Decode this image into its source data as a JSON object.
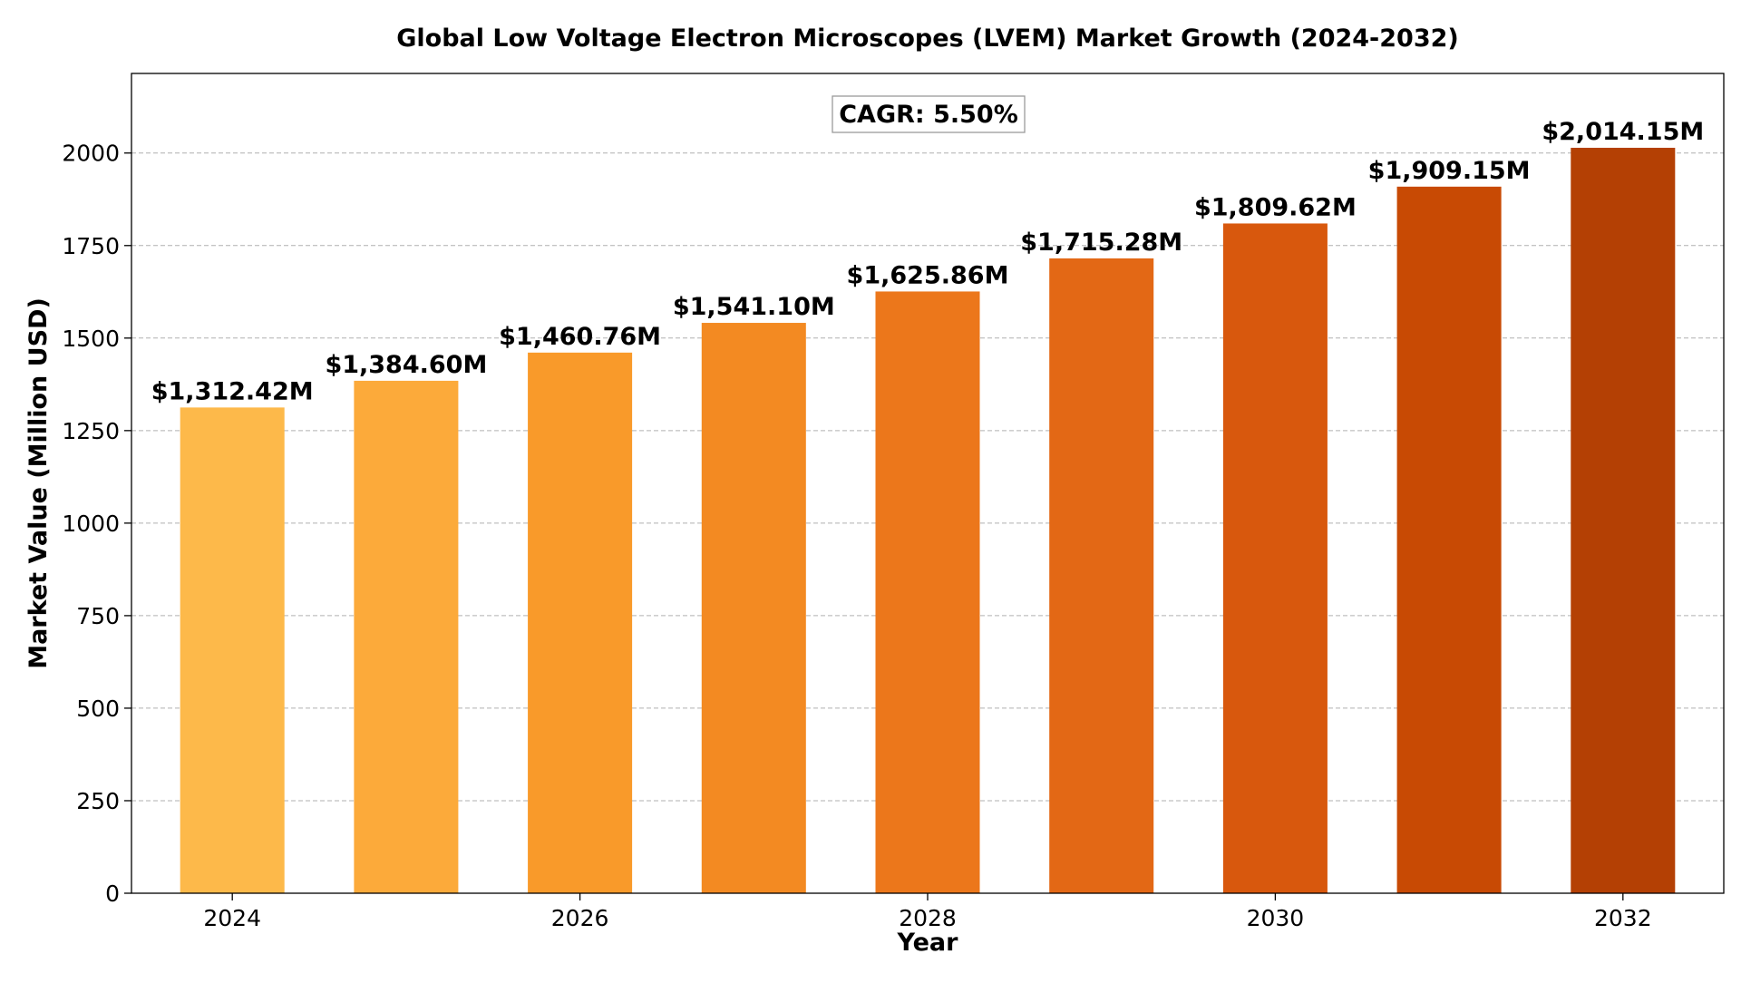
{
  "chart_data": {
    "type": "bar",
    "title": "Global Low Voltage Electron Microscopes (LVEM) Market Growth (2024-2032)",
    "xlabel": "Year",
    "ylabel": "Market Value (Million USD)",
    "x": [
      2024,
      2025,
      2026,
      2027,
      2028,
      2029,
      2030,
      2031,
      2032
    ],
    "values": [
      1312.42,
      1384.6,
      1460.76,
      1541.1,
      1625.86,
      1715.28,
      1809.62,
      1909.15,
      2014.15
    ],
    "value_labels": [
      "$1,312.42M",
      "$1,384.60M",
      "$1,460.76M",
      "$1,541.10M",
      "$1,625.86M",
      "$1,715.28M",
      "$1,809.62M",
      "$1,909.15M",
      "$2,014.15M"
    ],
    "bar_colors": [
      "#FDB94A",
      "#FCAA3A",
      "#F99A2A",
      "#F38A22",
      "#EC771B",
      "#E36815",
      "#D8580D",
      "#C84A04",
      "#B44004"
    ],
    "xticks": [
      2024,
      2026,
      2028,
      2030,
      2032
    ],
    "xtick_labels": [
      "2024",
      "2026",
      "2028",
      "2030",
      "2032"
    ],
    "yticks": [
      0,
      250,
      500,
      750,
      1000,
      1250,
      1500,
      1750,
      2000
    ],
    "ytick_labels": [
      "0",
      "250",
      "500",
      "750",
      "1000",
      "1250",
      "1500",
      "1750",
      "2000"
    ],
    "ylim": [
      0,
      2215
    ],
    "xlim": [
      2023.42,
      2032.58
    ],
    "grid": "y-dashed",
    "annotation": "CAGR: 5.50%"
  }
}
